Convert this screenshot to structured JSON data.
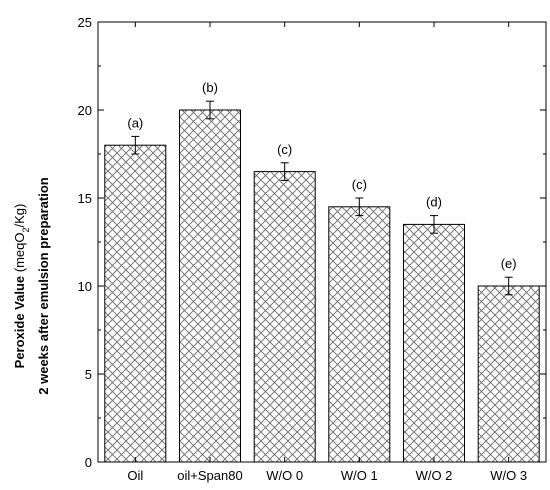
{
  "chart_data": {
    "type": "bar",
    "categories": [
      "Oil",
      "oil+Span80",
      "W/O 0",
      "W/O 1",
      "W/O 2",
      "W/O 3"
    ],
    "values": [
      18.0,
      20.0,
      16.5,
      14.5,
      13.5,
      10.0
    ],
    "errors": [
      0.5,
      0.5,
      0.5,
      0.5,
      0.5,
      0.5
    ],
    "data_labels": [
      "(a)",
      "(b)",
      "(c)",
      "(c)",
      "(d)",
      "(e)"
    ],
    "ylim": [
      0,
      25
    ],
    "yticks": [
      "0",
      "5",
      "10",
      "15",
      "20",
      "25"
    ],
    "ytick_values": [
      0,
      5,
      10,
      15,
      20,
      25
    ],
    "ylabel_line1_bold": "Peroxide Value",
    "ylabel_line1_unit_prefix": " (meqO",
    "ylabel_line1_unit_sub": "2",
    "ylabel_line1_unit_suffix": "/Kg)",
    "ylabel_line2": "2 weeks after emulsion preparation",
    "xlabel": "",
    "bar_fill": "crosshatch",
    "colors": {
      "bar_stroke": "#000000",
      "hatch": "#6b6b6b",
      "axis": "#000000"
    },
    "grid": false,
    "legend": "none"
  }
}
